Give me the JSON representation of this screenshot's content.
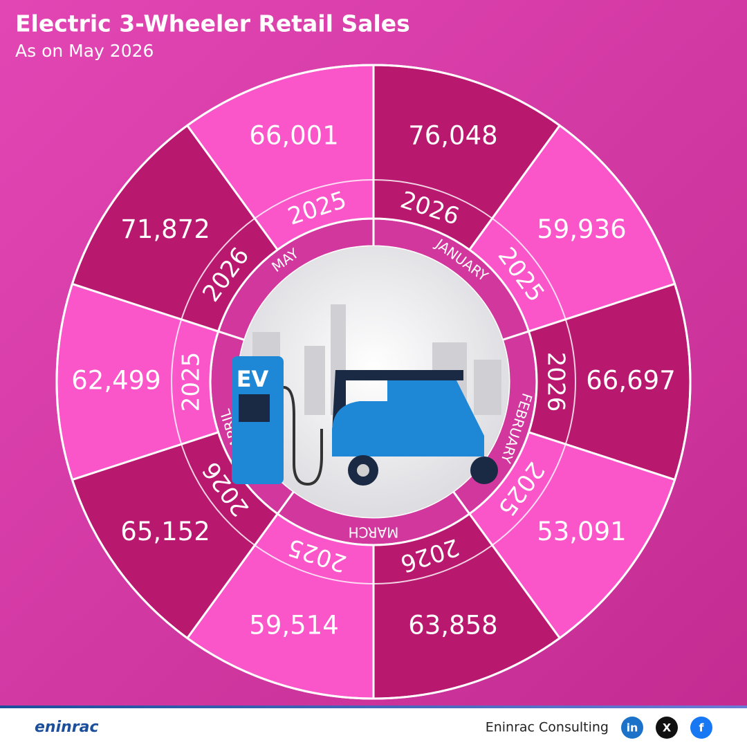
{
  "chart_data": {
    "type": "radial",
    "title": "Electric 3-Wheeler Retail Sales",
    "subtitle": "As on May 2026",
    "categories": [
      "JANUARY",
      "FEBRUARY",
      "MARCH",
      "APRIL",
      "MAY"
    ],
    "series": [
      {
        "name": "2026",
        "color": "#b8196f",
        "values": [
          76048,
          66697,
          63858,
          65152,
          71872
        ],
        "value_labels": [
          "76,048",
          "66,697",
          "63,858",
          "65,152",
          "71,872"
        ]
      },
      {
        "name": "2025",
        "color": "#fb56c9",
        "values": [
          59936,
          53091,
          59514,
          62499,
          66001
        ],
        "value_labels": [
          "59,936",
          "53,091",
          "59,514",
          "62,499",
          "66,001"
        ]
      }
    ]
  },
  "center": {
    "label": "EV"
  },
  "footer": {
    "logo": "eninrac",
    "brand": "Eninrac Consulting",
    "social": [
      "in",
      "X",
      "f"
    ]
  }
}
